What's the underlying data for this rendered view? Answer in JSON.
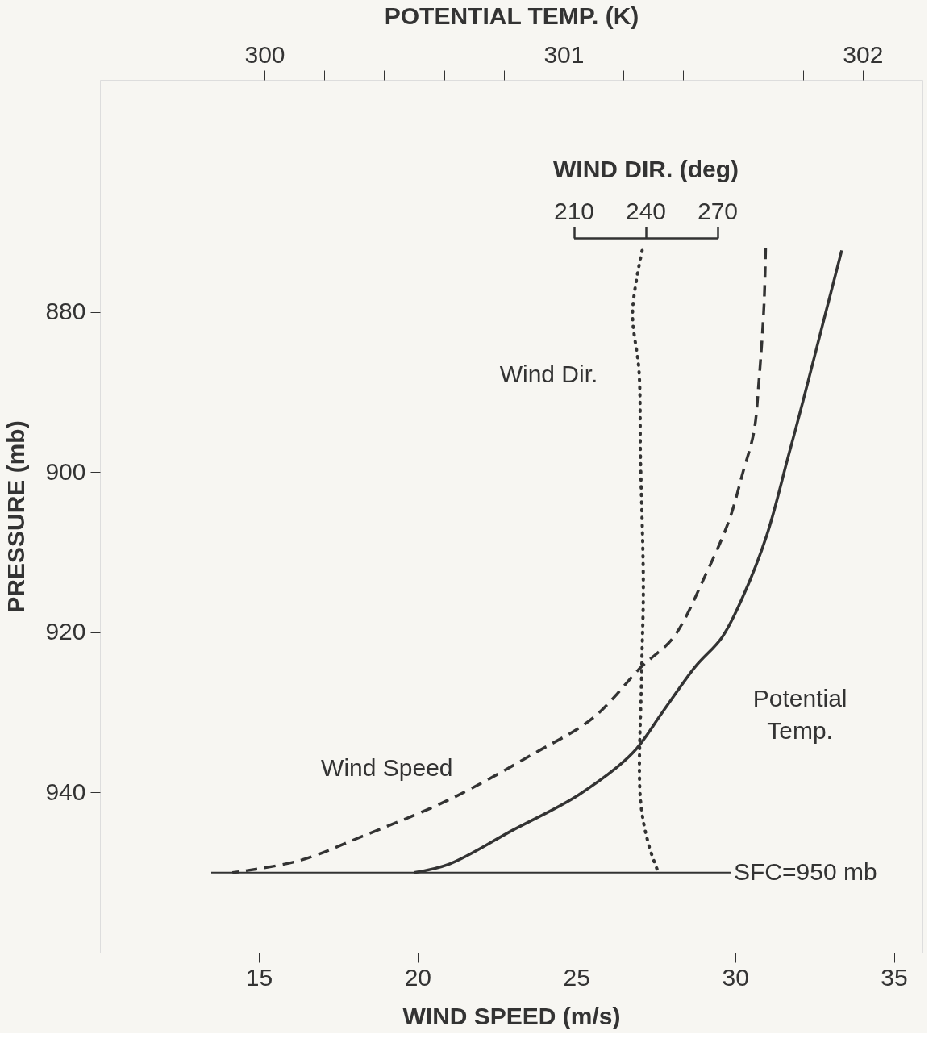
{
  "chart_data": [
    {
      "type": "line",
      "xlabel": "WIND SPEED (m/s)",
      "x2label": "POTENTIAL TEMP. (K)",
      "ylabel": "PRESSURE (mb)",
      "xlim": [
        10,
        35.9
      ],
      "xticks": [
        15,
        20,
        25,
        30,
        35
      ],
      "x2lim": [
        299.45,
        302.2
      ],
      "x2ticks": [
        300,
        {
          "value": 300.2,
          "label": null
        },
        {
          "value": 300.4,
          "label": null
        },
        {
          "value": 300.6,
          "label": null
        },
        {
          "value": 300.8,
          "label": null
        },
        301,
        {
          "value": 301.2,
          "label": null
        },
        {
          "value": 301.4,
          "label": null
        },
        {
          "value": 301.6,
          "label": null
        },
        {
          "value": 301.8,
          "label": null
        },
        302
      ],
      "ylim": [
        960,
        851
      ],
      "yticks": [
        880,
        900,
        920,
        940
      ],
      "marker": "none",
      "grid": false,
      "series": [
        {
          "name": "Wind Speed",
          "color": "#333333",
          "line_style": "dashed",
          "x": [
            30.96,
            30.91,
            30.75,
            30.59,
            30.24,
            29.82,
            29.06,
            28.06,
            27.05,
            25.52,
            23.68,
            20.99,
            18.3,
            16.28,
            14.17
          ],
          "values": [
            872,
            879.1,
            888.6,
            895,
            900.1,
            905.9,
            912.9,
            920.6,
            924.3,
            930.7,
            935.1,
            940.9,
            945.4,
            948.5,
            950
          ]
        },
        {
          "name": "Potential Temp.",
          "color": "#333333",
          "line_style": "solid",
          "axis": "x2",
          "x": [
            301.93,
            301.87,
            301.8,
            301.75,
            301.68,
            301.6,
            301.53,
            301.44,
            301.33,
            301.23,
            301.05,
            300.83,
            300.62,
            300.5
          ],
          "values": [
            872.3,
            881,
            891.2,
            898.2,
            907.8,
            915.5,
            920.6,
            924.3,
            930,
            935.1,
            940.3,
            944.7,
            948.9,
            950
          ]
        }
      ],
      "ref_lines": [
        {
          "axis": "y",
          "value": 950,
          "label": "SFC=950 mb",
          "color": "#333333"
        }
      ]
    },
    {
      "type": "line",
      "xlabel": "WIND DIR. (deg)",
      "xlim": [
        210,
        270
      ],
      "xticks": [
        210,
        240,
        270
      ],
      "ylim": [
        960,
        851
      ],
      "tick_labels": "x",
      "marker": "none",
      "series": [
        {
          "name": "Wind Dir.",
          "color": "#333333",
          "line_style": "dotted",
          "x": [
            238.6,
            234.6,
            237.3,
            237.9,
            239.1,
            238.4,
            237.9,
            241.4,
            245.4
          ],
          "values": [
            872.3,
            880,
            887.4,
            898.2,
            914.2,
            924.9,
            940.9,
            946.6,
            950
          ]
        }
      ]
    }
  ]
}
